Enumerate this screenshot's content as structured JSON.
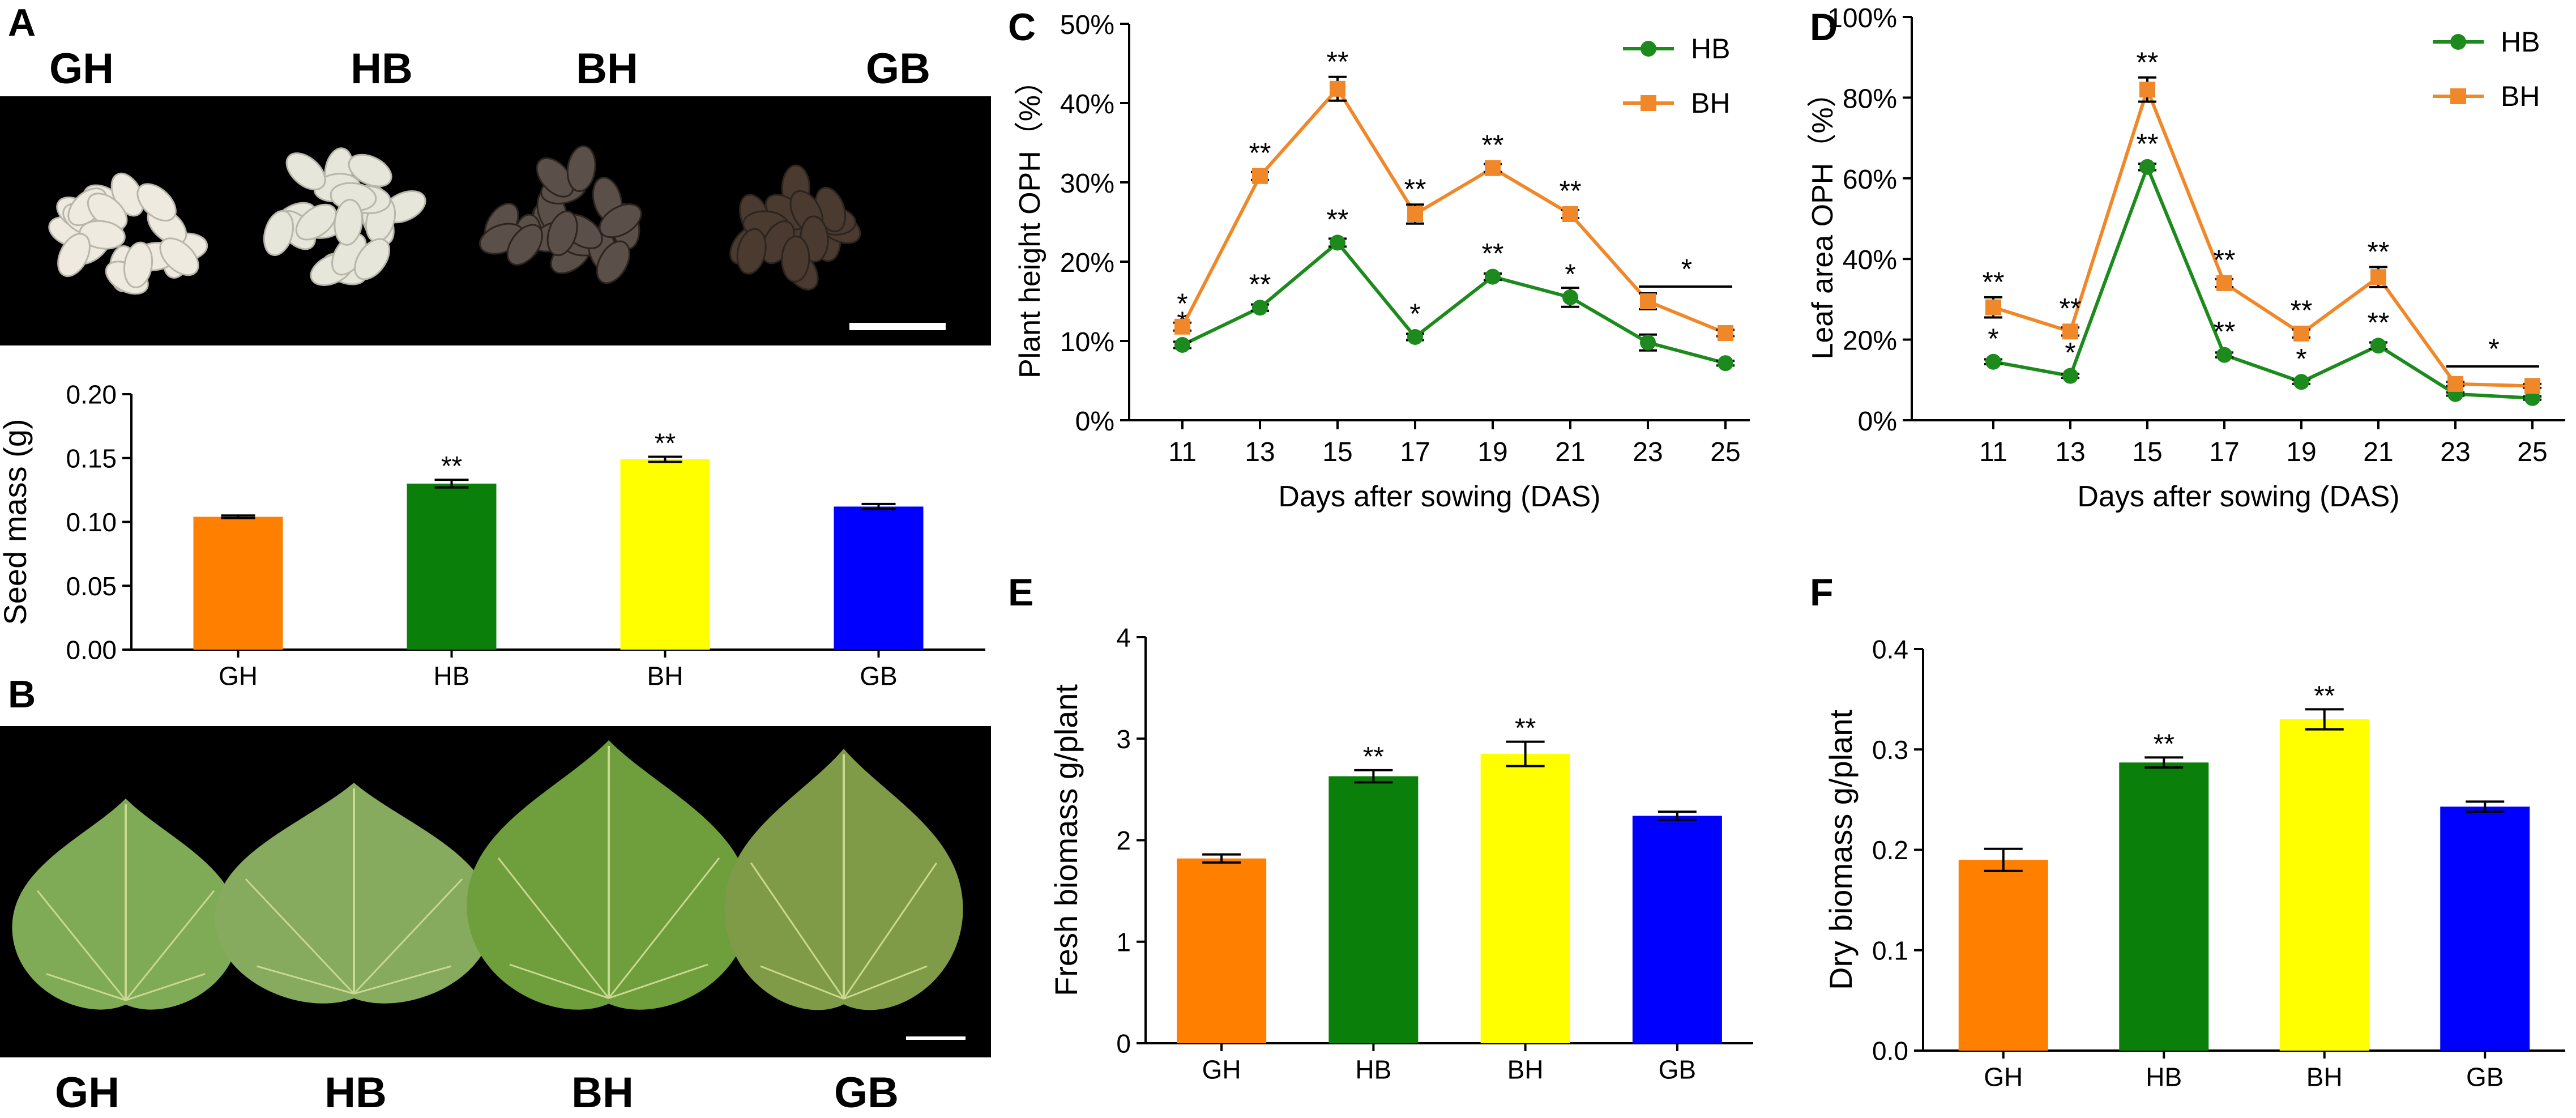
{
  "panels": {
    "A": "A",
    "B": "B",
    "C": "C",
    "D": "D",
    "E": "E",
    "F": "F"
  },
  "panel_a": {
    "photo_labels": [
      "GH",
      "HB",
      "BH",
      "GB"
    ],
    "seed_colors": [
      "#eeeae0",
      "#e6e6da",
      "#5a4f49",
      "#4a3a30"
    ]
  },
  "panel_b": {
    "photo_labels": [
      "GH",
      "HB",
      "BH",
      "GB"
    ],
    "leaf_colors": [
      "#7faa56",
      "#86aa5e",
      "#6f9e3c",
      "#809b48"
    ]
  },
  "colors": {
    "GH": "#ff7f00",
    "HB": "#0a800a",
    "BH": "#ffff00",
    "GB": "#0000ff",
    "line_hb": "#1c8a1c",
    "line_bh": "#f0882a"
  },
  "chart_data": [
    {
      "id": "seed-mass",
      "type": "bar",
      "ylabel": "Seed mass (g)",
      "categories": [
        "GH",
        "HB",
        "BH",
        "GB"
      ],
      "values": [
        0.104,
        0.13,
        0.149,
        0.112
      ],
      "errors": [
        0.001,
        0.003,
        0.002,
        0.002
      ],
      "significance": [
        "",
        "**",
        "**",
        ""
      ],
      "colors": [
        "#ff7f00",
        "#0a800a",
        "#ffff00",
        "#0000ff"
      ],
      "ylim": [
        0,
        0.2
      ],
      "yticks": [
        0,
        0.05,
        0.1,
        0.15,
        0.2
      ],
      "ytick_labels": [
        "0.00",
        "0.05",
        "0.10",
        "0.15",
        "0.20"
      ]
    },
    {
      "id": "plant-height-oph",
      "type": "line",
      "xlabel": "Days after sowing (DAS)",
      "ylabel": "Plant height OPH（%）",
      "x": [
        11,
        13,
        15,
        17,
        19,
        21,
        23,
        25
      ],
      "ylim": [
        0,
        50
      ],
      "yticks": [
        0,
        10,
        20,
        30,
        40,
        50
      ],
      "ytick_labels": [
        "0%",
        "10%",
        "20%",
        "30%",
        "40%",
        "50%"
      ],
      "legend_position": "top-right",
      "series": [
        {
          "name": "HB",
          "color": "#1c8a1c",
          "marker": "circle",
          "values": [
            9.5,
            14.2,
            22.4,
            10.5,
            18.1,
            15.5,
            9.8,
            7.2
          ],
          "errors": [
            0.4,
            0.4,
            0.5,
            0.4,
            0.4,
            1.2,
            1.0,
            0.3
          ],
          "significance": [
            "*",
            "**",
            "**",
            "*",
            "**",
            "*",
            "",
            ""
          ]
        },
        {
          "name": "BH",
          "color": "#f0882a",
          "marker": "square",
          "values": [
            11.8,
            30.8,
            41.8,
            26.0,
            31.8,
            26.0,
            15.0,
            11.0
          ],
          "errors": [
            0.5,
            0.5,
            1.5,
            1.2,
            0.5,
            0.5,
            1.0,
            0.4
          ],
          "significance": [
            "*",
            "**",
            "**",
            "**",
            "**",
            "**",
            "",
            ""
          ]
        }
      ],
      "bracket_label": "*",
      "bracket_span": [
        23,
        25
      ]
    },
    {
      "id": "leaf-area-oph",
      "type": "line",
      "xlabel": "Days after sowing (DAS)",
      "ylabel": "Leaf area OPH（%）",
      "x": [
        11,
        13,
        15,
        17,
        19,
        21,
        23,
        25
      ],
      "ylim": [
        0,
        100
      ],
      "yticks": [
        0,
        20,
        40,
        60,
        80,
        100
      ],
      "ytick_labels": [
        "0%",
        "20%",
        "40%",
        "60%",
        "80%",
        "100%"
      ],
      "legend_position": "top-right",
      "series": [
        {
          "name": "HB",
          "color": "#1c8a1c",
          "marker": "circle",
          "values": [
            14.5,
            11.0,
            62.8,
            16.2,
            9.5,
            18.5,
            6.5,
            5.5
          ],
          "errors": [
            0.6,
            0.5,
            0.8,
            0.6,
            0.5,
            0.8,
            0.4,
            0.4
          ],
          "significance": [
            "*",
            "*",
            "**",
            "**",
            "*",
            "**",
            "",
            ""
          ]
        },
        {
          "name": "BH",
          "color": "#f0882a",
          "marker": "square",
          "values": [
            28.0,
            22.0,
            82.0,
            34.0,
            21.5,
            35.5,
            9.0,
            8.5
          ],
          "errors": [
            2.5,
            1.0,
            3.0,
            1.0,
            1.0,
            2.5,
            0.5,
            0.5
          ],
          "significance": [
            "**",
            "**",
            "**",
            "**",
            "**",
            "**",
            "",
            ""
          ]
        }
      ],
      "bracket_label": "*",
      "bracket_span": [
        23,
        25
      ]
    },
    {
      "id": "fresh-biomass",
      "type": "bar",
      "ylabel": "Fresh biomass g/plant",
      "categories": [
        "GH",
        "HB",
        "BH",
        "GB"
      ],
      "values": [
        1.82,
        2.63,
        2.85,
        2.24
      ],
      "errors": [
        0.04,
        0.06,
        0.12,
        0.04
      ],
      "significance": [
        "",
        "**",
        "**",
        ""
      ],
      "colors": [
        "#ff7f00",
        "#0a800a",
        "#ffff00",
        "#0000ff"
      ],
      "ylim": [
        0,
        4
      ],
      "yticks": [
        0,
        1,
        2,
        3,
        4
      ],
      "ytick_labels": [
        "0",
        "1",
        "2",
        "3",
        "4"
      ]
    },
    {
      "id": "dry-biomass",
      "type": "bar",
      "ylabel": "Dry biomass g/plant",
      "categories": [
        "GH",
        "HB",
        "BH",
        "GB"
      ],
      "values": [
        0.19,
        0.287,
        0.33,
        0.243
      ],
      "errors": [
        0.011,
        0.005,
        0.01,
        0.005
      ],
      "significance": [
        "",
        "**",
        "**",
        ""
      ],
      "colors": [
        "#ff7f00",
        "#0a800a",
        "#ffff00",
        "#0000ff"
      ],
      "ylim": [
        0,
        0.4
      ],
      "yticks": [
        0,
        0.1,
        0.2,
        0.3,
        0.4
      ],
      "ytick_labels": [
        "0.0",
        "0.1",
        "0.2",
        "0.3",
        "0.4"
      ]
    }
  ]
}
